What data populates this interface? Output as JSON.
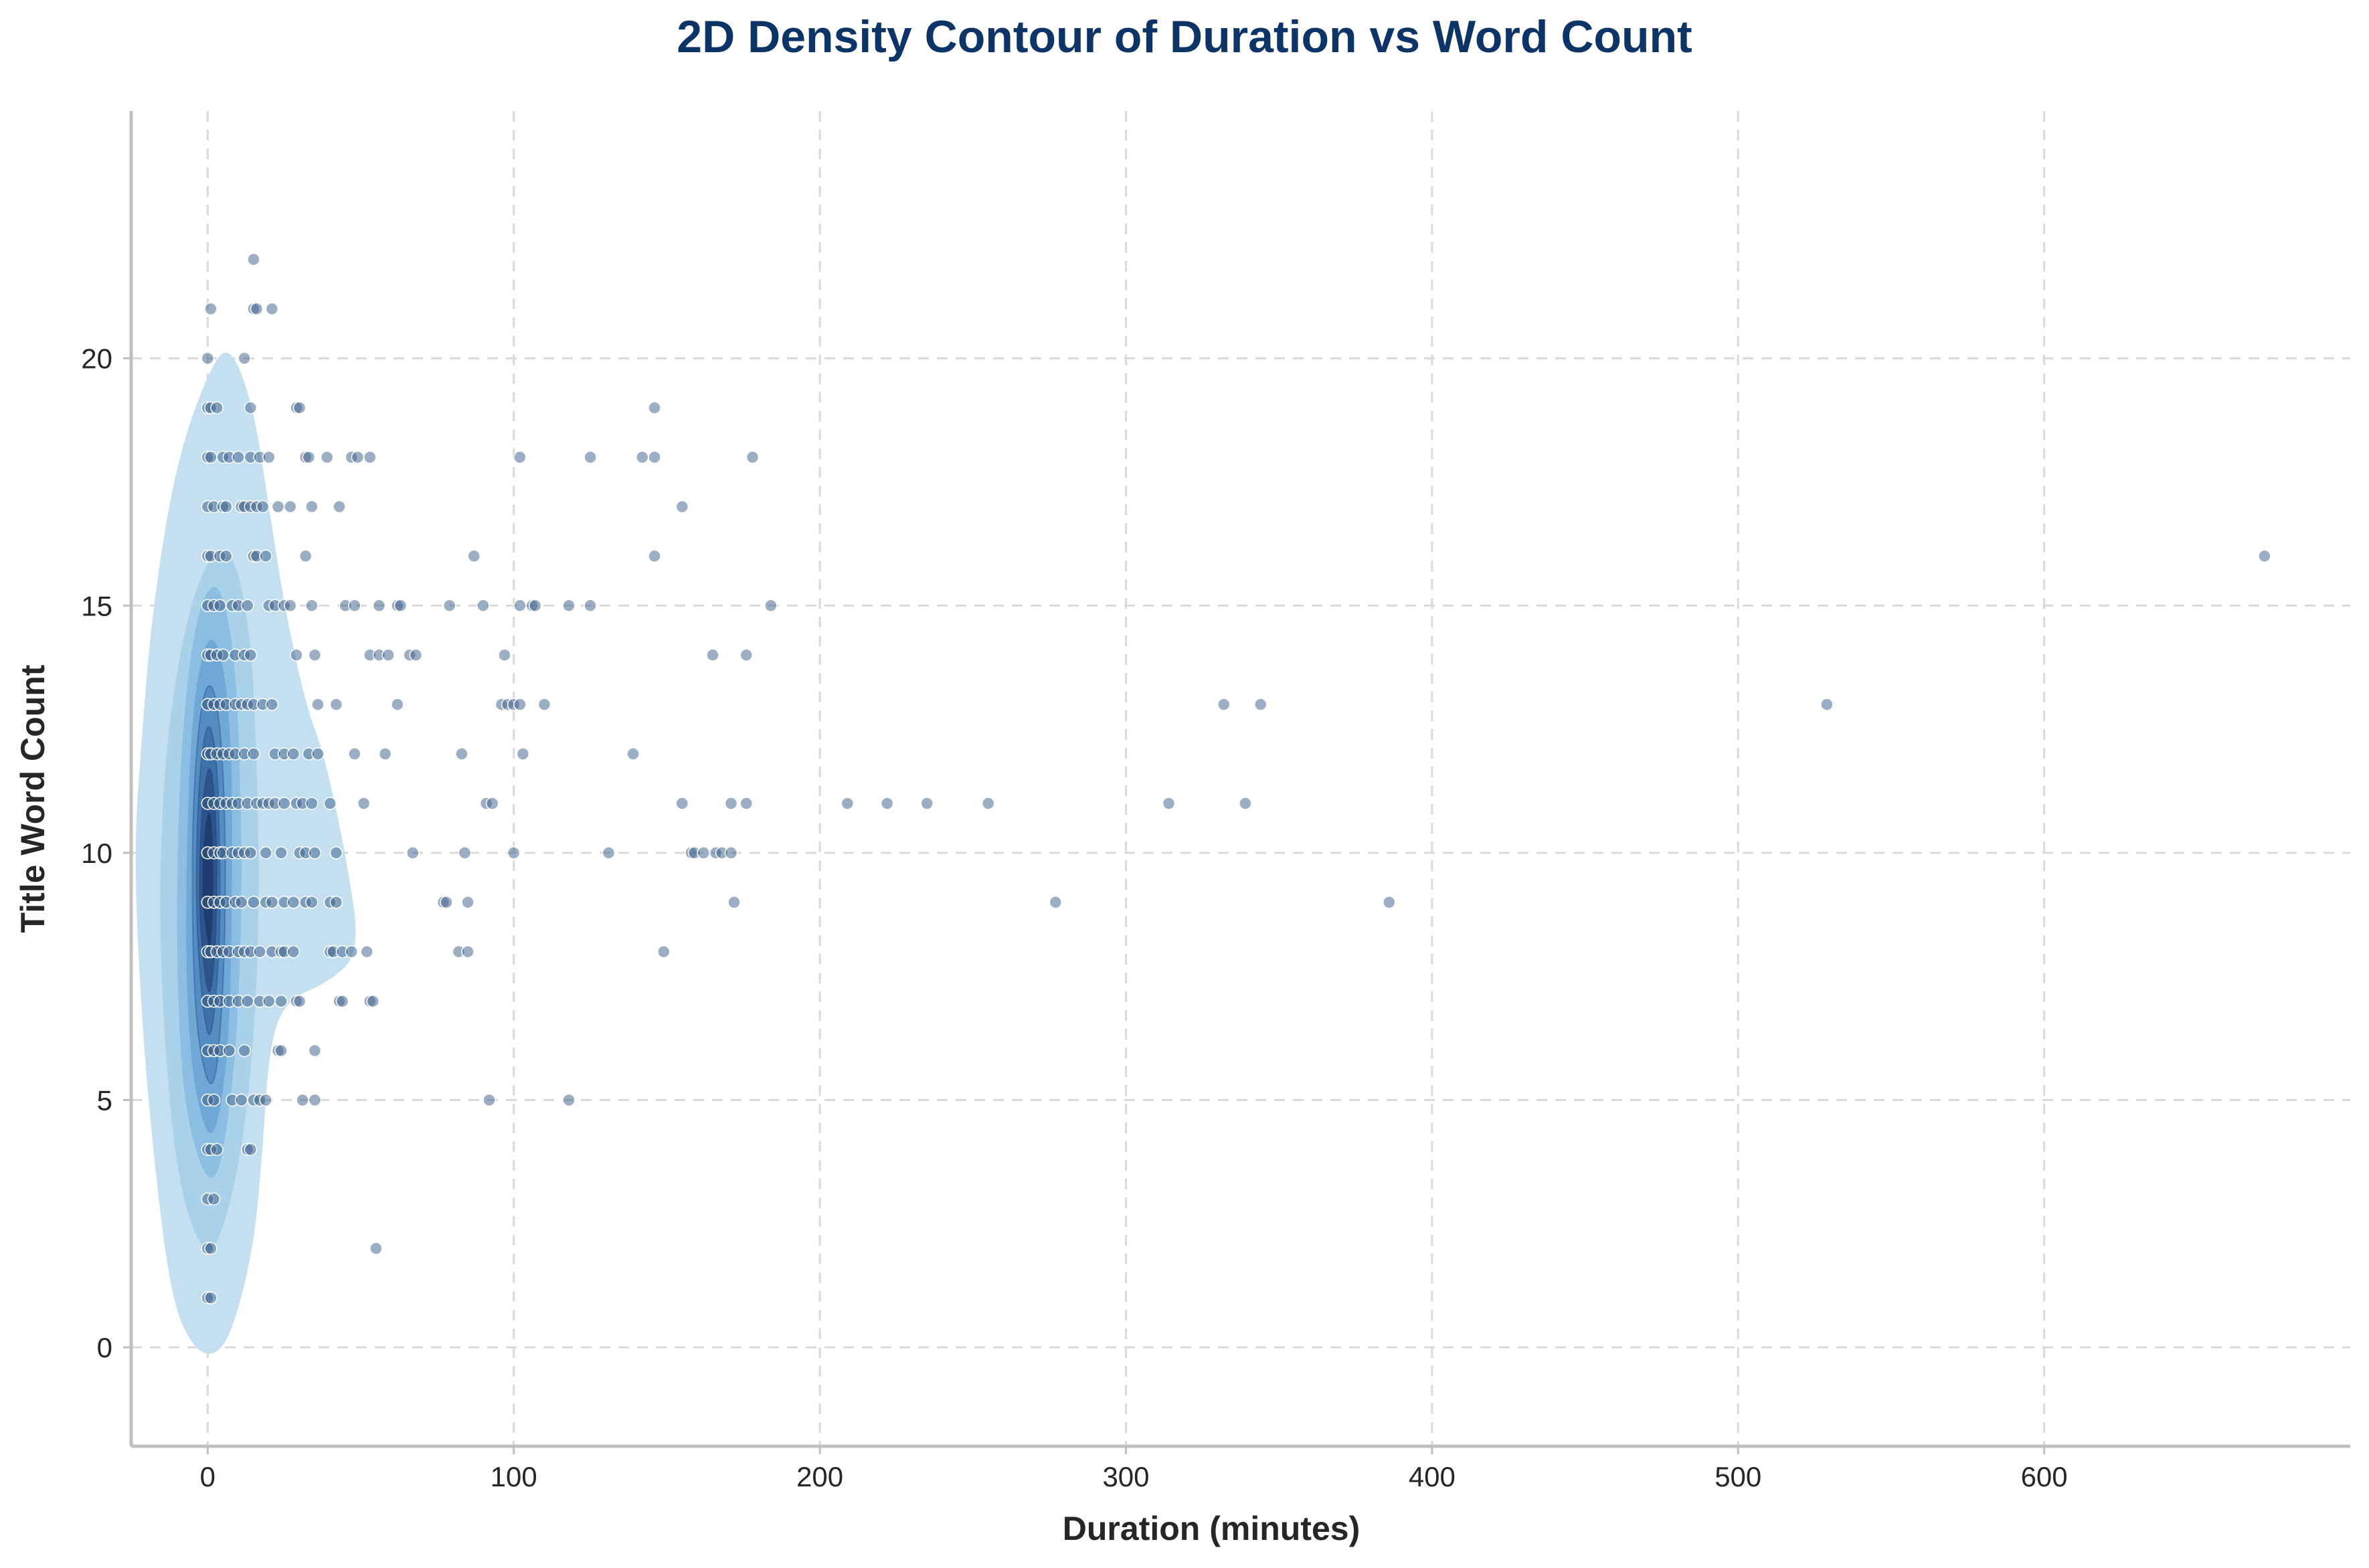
{
  "colors": {
    "title": "#0d3466",
    "points": "#3a5d8a",
    "contour_levels": [
      "#c3dff0",
      "#a6cfe9",
      "#86bbe0",
      "#6aa5d4",
      "#5088c1",
      "#3b6ba6",
      "#2a4f88",
      "#1e3a6b"
    ]
  },
  "chart_data": {
    "type": "scatter",
    "title": "2D Density Contour of Duration vs Word Count",
    "xlabel": "Duration (minutes)",
    "ylabel": "Title Word Count",
    "xlim": [
      -25,
      700
    ],
    "ylim": [
      -2,
      25
    ],
    "xticks": [
      0,
      100,
      200,
      300,
      400,
      500,
      600
    ],
    "yticks": [
      0,
      5,
      10,
      15,
      20
    ],
    "grid": true,
    "contour_levels": [
      {
        "level": 1,
        "outline": [
          [
            2,
            -0.2
          ],
          [
            8,
            0.3
          ],
          [
            15,
            2
          ],
          [
            18,
            4
          ],
          [
            20,
            6
          ],
          [
            25,
            7
          ],
          [
            40,
            7.4
          ],
          [
            50,
            8
          ],
          [
            45,
            10
          ],
          [
            38,
            12
          ],
          [
            32,
            13
          ],
          [
            25,
            15
          ],
          [
            20,
            17
          ],
          [
            15,
            19
          ],
          [
            8,
            20.2
          ],
          [
            2,
            20
          ],
          [
            -10,
            18
          ],
          [
            -18,
            15
          ],
          [
            -22,
            12
          ],
          [
            -24,
            10
          ],
          [
            -22,
            7
          ],
          [
            -18,
            4
          ],
          [
            -12,
            1
          ],
          [
            -5,
            0
          ]
        ]
      },
      {
        "level": 2,
        "outline": [
          [
            2,
            1.8
          ],
          [
            10,
            3.5
          ],
          [
            15,
            6
          ],
          [
            17,
            9
          ],
          [
            16,
            12
          ],
          [
            14,
            14.5
          ],
          [
            8,
            16.2
          ],
          [
            0,
            16
          ],
          [
            -8,
            14.5
          ],
          [
            -14,
            12
          ],
          [
            -16,
            9
          ],
          [
            -14,
            6
          ],
          [
            -10,
            3.5
          ],
          [
            -4,
            2.2
          ]
        ]
      },
      {
        "level": 3,
        "outline": [
          [
            2,
            3
          ],
          [
            8,
            5
          ],
          [
            11,
            8
          ],
          [
            11,
            11
          ],
          [
            9,
            14
          ],
          [
            4,
            15.5
          ],
          [
            -2,
            15.2
          ],
          [
            -7,
            13.5
          ],
          [
            -10,
            10.5
          ],
          [
            -10,
            7
          ],
          [
            -7,
            4.5
          ]
        ]
      },
      {
        "level": 4,
        "outline": [
          [
            2,
            4
          ],
          [
            7,
            6
          ],
          [
            8,
            9
          ],
          [
            8,
            12
          ],
          [
            5,
            14
          ],
          [
            0,
            14.5
          ],
          [
            -5,
            13
          ],
          [
            -7,
            10
          ],
          [
            -7,
            7
          ],
          [
            -4,
            5
          ]
        ]
      },
      {
        "level": 5,
        "outline": [
          [
            2,
            5
          ],
          [
            5,
            7
          ],
          [
            6,
            9.5
          ],
          [
            5,
            12
          ],
          [
            2,
            13.5
          ],
          [
            -2,
            13.2
          ],
          [
            -5,
            11
          ],
          [
            -5,
            8
          ],
          [
            -3,
            6
          ]
        ]
      },
      {
        "level": 6,
        "outline": [
          [
            1,
            6
          ],
          [
            4,
            8
          ],
          [
            4,
            10
          ],
          [
            3,
            12
          ],
          [
            0,
            12.8
          ],
          [
            -3,
            11.5
          ],
          [
            -4,
            9
          ],
          [
            -2,
            7
          ]
        ]
      },
      {
        "level": 7,
        "outline": [
          [
            1,
            7
          ],
          [
            3,
            8.5
          ],
          [
            3,
            10.5
          ],
          [
            1,
            12
          ],
          [
            -2,
            11
          ],
          [
            -3,
            9
          ],
          [
            -1,
            7.5
          ]
        ]
      },
      {
        "level": 8,
        "outline": [
          [
            1,
            8
          ],
          [
            2,
            9.5
          ],
          [
            1,
            11
          ],
          [
            -1,
            10.5
          ],
          [
            -2,
            9.2
          ],
          [
            0,
            8.2
          ]
        ]
      }
    ],
    "points": [
      [
        1,
        21
      ],
      [
        0,
        20
      ],
      [
        0,
        19
      ],
      [
        1,
        19
      ],
      [
        3,
        19
      ],
      [
        0,
        18
      ],
      [
        1,
        18
      ],
      [
        5,
        18
      ],
      [
        7,
        18
      ],
      [
        10,
        18
      ],
      [
        14,
        18
      ],
      [
        17,
        18
      ],
      [
        20,
        18
      ],
      [
        32,
        18
      ],
      [
        33,
        18
      ],
      [
        39,
        18
      ],
      [
        47,
        18
      ],
      [
        49,
        18
      ],
      [
        53,
        18
      ],
      [
        15,
        22
      ],
      [
        15,
        21
      ],
      [
        16,
        21
      ],
      [
        21,
        21
      ],
      [
        12,
        20
      ],
      [
        14,
        19
      ],
      [
        29,
        19
      ],
      [
        30,
        19
      ],
      [
        0,
        17
      ],
      [
        2,
        17
      ],
      [
        5,
        17
      ],
      [
        6,
        17
      ],
      [
        11,
        17
      ],
      [
        12,
        17
      ],
      [
        14,
        17
      ],
      [
        16,
        17
      ],
      [
        18,
        17
      ],
      [
        23,
        17
      ],
      [
        27,
        17
      ],
      [
        34,
        17
      ],
      [
        43,
        17
      ],
      [
        0,
        16
      ],
      [
        1,
        16
      ],
      [
        4,
        16
      ],
      [
        6,
        16
      ],
      [
        15,
        16
      ],
      [
        16,
        16
      ],
      [
        19,
        16
      ],
      [
        32,
        16
      ],
      [
        0,
        15
      ],
      [
        2,
        15
      ],
      [
        4,
        15
      ],
      [
        8,
        15
      ],
      [
        10,
        15
      ],
      [
        13,
        15
      ],
      [
        20,
        15
      ],
      [
        22,
        15
      ],
      [
        25,
        15
      ],
      [
        27,
        15
      ],
      [
        34,
        15
      ],
      [
        45,
        15
      ],
      [
        48,
        15
      ],
      [
        56,
        15
      ],
      [
        62,
        15
      ],
      [
        63,
        15
      ],
      [
        79,
        15
      ],
      [
        90,
        15
      ],
      [
        102,
        15
      ],
      [
        106,
        15
      ],
      [
        107,
        15
      ],
      [
        118,
        15
      ],
      [
        125,
        15
      ],
      [
        184,
        15
      ],
      [
        0,
        14
      ],
      [
        1,
        14
      ],
      [
        3,
        14
      ],
      [
        5,
        14
      ],
      [
        9,
        14
      ],
      [
        12,
        14
      ],
      [
        14,
        14
      ],
      [
        29,
        14
      ],
      [
        35,
        14
      ],
      [
        53,
        14
      ],
      [
        56,
        14
      ],
      [
        59,
        14
      ],
      [
        66,
        14
      ],
      [
        68,
        14
      ],
      [
        97,
        14
      ],
      [
        165,
        14
      ],
      [
        176,
        14
      ],
      [
        0,
        13
      ],
      [
        2,
        13
      ],
      [
        4,
        13
      ],
      [
        6,
        13
      ],
      [
        9,
        13
      ],
      [
        11,
        13
      ],
      [
        13,
        13
      ],
      [
        15,
        13
      ],
      [
        18,
        13
      ],
      [
        21,
        13
      ],
      [
        36,
        13
      ],
      [
        42,
        13
      ],
      [
        62,
        13
      ],
      [
        96,
        13
      ],
      [
        98,
        13
      ],
      [
        100,
        13
      ],
      [
        102,
        13
      ],
      [
        110,
        13
      ],
      [
        332,
        13
      ],
      [
        344,
        13
      ],
      [
        529,
        13
      ],
      [
        0,
        12
      ],
      [
        1,
        12
      ],
      [
        3,
        12
      ],
      [
        5,
        12
      ],
      [
        7,
        12
      ],
      [
        9,
        12
      ],
      [
        12,
        12
      ],
      [
        15,
        12
      ],
      [
        22,
        12
      ],
      [
        25,
        12
      ],
      [
        28,
        12
      ],
      [
        33,
        12
      ],
      [
        36,
        12
      ],
      [
        48,
        12
      ],
      [
        58,
        12
      ],
      [
        83,
        12
      ],
      [
        103,
        12
      ],
      [
        139,
        12
      ],
      [
        0,
        11
      ],
      [
        2,
        11
      ],
      [
        4,
        11
      ],
      [
        6,
        11
      ],
      [
        8,
        11
      ],
      [
        10,
        11
      ],
      [
        13,
        11
      ],
      [
        16,
        11
      ],
      [
        18,
        11
      ],
      [
        20,
        11
      ],
      [
        22,
        11
      ],
      [
        25,
        11
      ],
      [
        29,
        11
      ],
      [
        31,
        11
      ],
      [
        34,
        11
      ],
      [
        40,
        11
      ],
      [
        51,
        11
      ],
      [
        91,
        11
      ],
      [
        93,
        11
      ],
      [
        155,
        11
      ],
      [
        171,
        11
      ],
      [
        176,
        11
      ],
      [
        209,
        11
      ],
      [
        222,
        11
      ],
      [
        235,
        11
      ],
      [
        255,
        11
      ],
      [
        314,
        11
      ],
      [
        339,
        11
      ],
      [
        0,
        10
      ],
      [
        2,
        10
      ],
      [
        4,
        10
      ],
      [
        5,
        10
      ],
      [
        8,
        10
      ],
      [
        10,
        10
      ],
      [
        12,
        10
      ],
      [
        14,
        10
      ],
      [
        19,
        10
      ],
      [
        24,
        10
      ],
      [
        30,
        10
      ],
      [
        32,
        10
      ],
      [
        35,
        10
      ],
      [
        42,
        10
      ],
      [
        67,
        10
      ],
      [
        84,
        10
      ],
      [
        100,
        10
      ],
      [
        131,
        10
      ],
      [
        158,
        10
      ],
      [
        159,
        10
      ],
      [
        162,
        10
      ],
      [
        166,
        10
      ],
      [
        168,
        10
      ],
      [
        171,
        10
      ],
      [
        0,
        9
      ],
      [
        2,
        9
      ],
      [
        4,
        9
      ],
      [
        6,
        9
      ],
      [
        9,
        9
      ],
      [
        11,
        9
      ],
      [
        15,
        9
      ],
      [
        19,
        9
      ],
      [
        21,
        9
      ],
      [
        25,
        9
      ],
      [
        28,
        9
      ],
      [
        32,
        9
      ],
      [
        34,
        9
      ],
      [
        40,
        9
      ],
      [
        42,
        9
      ],
      [
        77,
        9
      ],
      [
        78,
        9
      ],
      [
        85,
        9
      ],
      [
        172,
        9
      ],
      [
        277,
        9
      ],
      [
        386,
        9
      ],
      [
        0,
        8
      ],
      [
        1,
        8
      ],
      [
        3,
        8
      ],
      [
        5,
        8
      ],
      [
        7,
        8
      ],
      [
        10,
        8
      ],
      [
        12,
        8
      ],
      [
        14,
        8
      ],
      [
        17,
        8
      ],
      [
        21,
        8
      ],
      [
        24,
        8
      ],
      [
        25,
        8
      ],
      [
        28,
        8
      ],
      [
        40,
        8
      ],
      [
        41,
        8
      ],
      [
        44,
        8
      ],
      [
        47,
        8
      ],
      [
        52,
        8
      ],
      [
        82,
        8
      ],
      [
        85,
        8
      ],
      [
        149,
        8
      ],
      [
        0,
        7
      ],
      [
        2,
        7
      ],
      [
        4,
        7
      ],
      [
        7,
        7
      ],
      [
        10,
        7
      ],
      [
        13,
        7
      ],
      [
        17,
        7
      ],
      [
        20,
        7
      ],
      [
        24,
        7
      ],
      [
        29,
        7
      ],
      [
        30,
        7
      ],
      [
        43,
        7
      ],
      [
        44,
        7
      ],
      [
        53,
        7
      ],
      [
        54,
        7
      ],
      [
        0,
        6
      ],
      [
        2,
        6
      ],
      [
        4,
        6
      ],
      [
        7,
        6
      ],
      [
        12,
        6
      ],
      [
        23,
        6
      ],
      [
        24,
        6
      ],
      [
        35,
        6
      ],
      [
        0,
        5
      ],
      [
        2,
        5
      ],
      [
        8,
        5
      ],
      [
        11,
        5
      ],
      [
        15,
        5
      ],
      [
        17,
        5
      ],
      [
        19,
        5
      ],
      [
        31,
        5
      ],
      [
        35,
        5
      ],
      [
        92,
        5
      ],
      [
        118,
        5
      ],
      [
        0,
        4
      ],
      [
        1,
        4
      ],
      [
        3,
        4
      ],
      [
        13,
        4
      ],
      [
        14,
        4
      ],
      [
        0,
        3
      ],
      [
        2,
        3
      ],
      [
        0,
        2
      ],
      [
        1,
        2
      ],
      [
        55,
        2
      ],
      [
        0,
        1
      ],
      [
        1,
        1
      ],
      [
        672,
        16
      ],
      [
        146,
        19
      ],
      [
        142,
        18
      ],
      [
        146,
        18
      ],
      [
        178,
        18
      ],
      [
        102,
        18
      ],
      [
        125,
        18
      ],
      [
        87,
        16
      ],
      [
        146,
        16
      ],
      [
        155,
        17
      ]
    ]
  }
}
